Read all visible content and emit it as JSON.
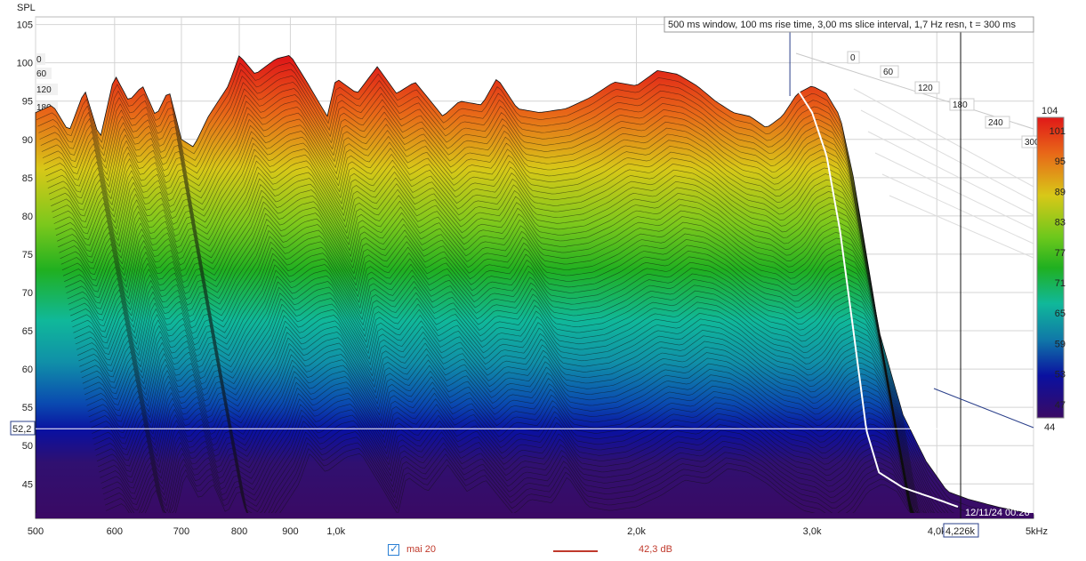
{
  "chart_data": {
    "type": "waterfall",
    "y_axis_label": "SPL",
    "info_text": "500 ms window, 100 ms rise time, 3,00 ms slice interval, 1,7 Hz resn, t = 300 ms",
    "x_scale": "log",
    "x_ticks": [
      {
        "value": 500,
        "label": "500"
      },
      {
        "value": 600,
        "label": "600"
      },
      {
        "value": 700,
        "label": "700"
      },
      {
        "value": 800,
        "label": "800"
      },
      {
        "value": 900,
        "label": "900"
      },
      {
        "value": 1000,
        "label": "1,0k"
      },
      {
        "value": 2000,
        "label": "2,0k"
      },
      {
        "value": 3000,
        "label": "3,0k"
      },
      {
        "value": 4000,
        "label": "4,0k"
      },
      {
        "value": 5000,
        "label": "5kHz"
      }
    ],
    "xlim": [
      500,
      5000
    ],
    "ylim": [
      40.5,
      106
    ],
    "y_ticks": [
      45,
      50,
      55,
      60,
      65,
      70,
      75,
      80,
      85,
      90,
      95,
      100,
      105
    ],
    "time_axis_labels": [
      "0",
      "60",
      "120",
      "180",
      "240",
      "300"
    ],
    "color_scale": {
      "max_label": "104",
      "ticks": [
        "101",
        "95",
        "89",
        "83",
        "77",
        "71",
        "65",
        "59",
        "53",
        "47"
      ],
      "bottom_label": "44"
    },
    "cursor": {
      "y_readout": "52,2",
      "x_readout": "4,226k",
      "date_readout": "12/11/24 00:26"
    },
    "front_slice_envelope": [
      [
        500,
        93.5
      ],
      [
        520,
        94.5
      ],
      [
        540,
        91
      ],
      [
        560,
        96.5
      ],
      [
        580,
        90
      ],
      [
        600,
        98.5
      ],
      [
        620,
        95
      ],
      [
        640,
        97
      ],
      [
        660,
        93
      ],
      [
        680,
        96.5
      ],
      [
        700,
        90
      ],
      [
        720,
        89
      ],
      [
        745,
        93
      ],
      [
        780,
        97
      ],
      [
        800,
        101
      ],
      [
        830,
        98.5
      ],
      [
        870,
        100.5
      ],
      [
        900,
        101
      ],
      [
        940,
        97
      ],
      [
        980,
        93
      ],
      [
        1000,
        98
      ],
      [
        1050,
        96
      ],
      [
        1100,
        99.5
      ],
      [
        1150,
        96
      ],
      [
        1200,
        97.5
      ],
      [
        1280,
        93
      ],
      [
        1330,
        95
      ],
      [
        1400,
        94.5
      ],
      [
        1450,
        98
      ],
      [
        1520,
        94
      ],
      [
        1600,
        93.5
      ],
      [
        1700,
        94
      ],
      [
        1800,
        95.5
      ],
      [
        1900,
        97.5
      ],
      [
        2000,
        97
      ],
      [
        2100,
        99
      ],
      [
        2200,
        98.5
      ],
      [
        2300,
        97
      ],
      [
        2400,
        95
      ],
      [
        2500,
        93.5
      ],
      [
        2600,
        93
      ],
      [
        2700,
        91.5
      ],
      [
        2800,
        93
      ],
      [
        2900,
        96
      ],
      [
        3000,
        97
      ],
      [
        3100,
        96
      ],
      [
        3200,
        93
      ],
      [
        3300,
        85
      ],
      [
        3400,
        75
      ],
      [
        3500,
        65
      ],
      [
        3700,
        54
      ],
      [
        3900,
        48
      ],
      [
        4100,
        44
      ],
      [
        4300,
        43
      ],
      [
        4600,
        42
      ],
      [
        5000,
        41
      ]
    ],
    "highlighted_slice": [
      [
        2900,
        96.5
      ],
      [
        3000,
        93.5
      ],
      [
        3100,
        88
      ],
      [
        3200,
        78
      ],
      [
        3300,
        65
      ],
      [
        3400,
        52
      ],
      [
        3500,
        46.5
      ],
      [
        3700,
        44.5
      ],
      [
        4000,
        43
      ],
      [
        4200,
        42
      ]
    ]
  },
  "legend": {
    "trace_name": "mai 20",
    "value": "42,3 dB",
    "trace_color": "#c0392b"
  }
}
